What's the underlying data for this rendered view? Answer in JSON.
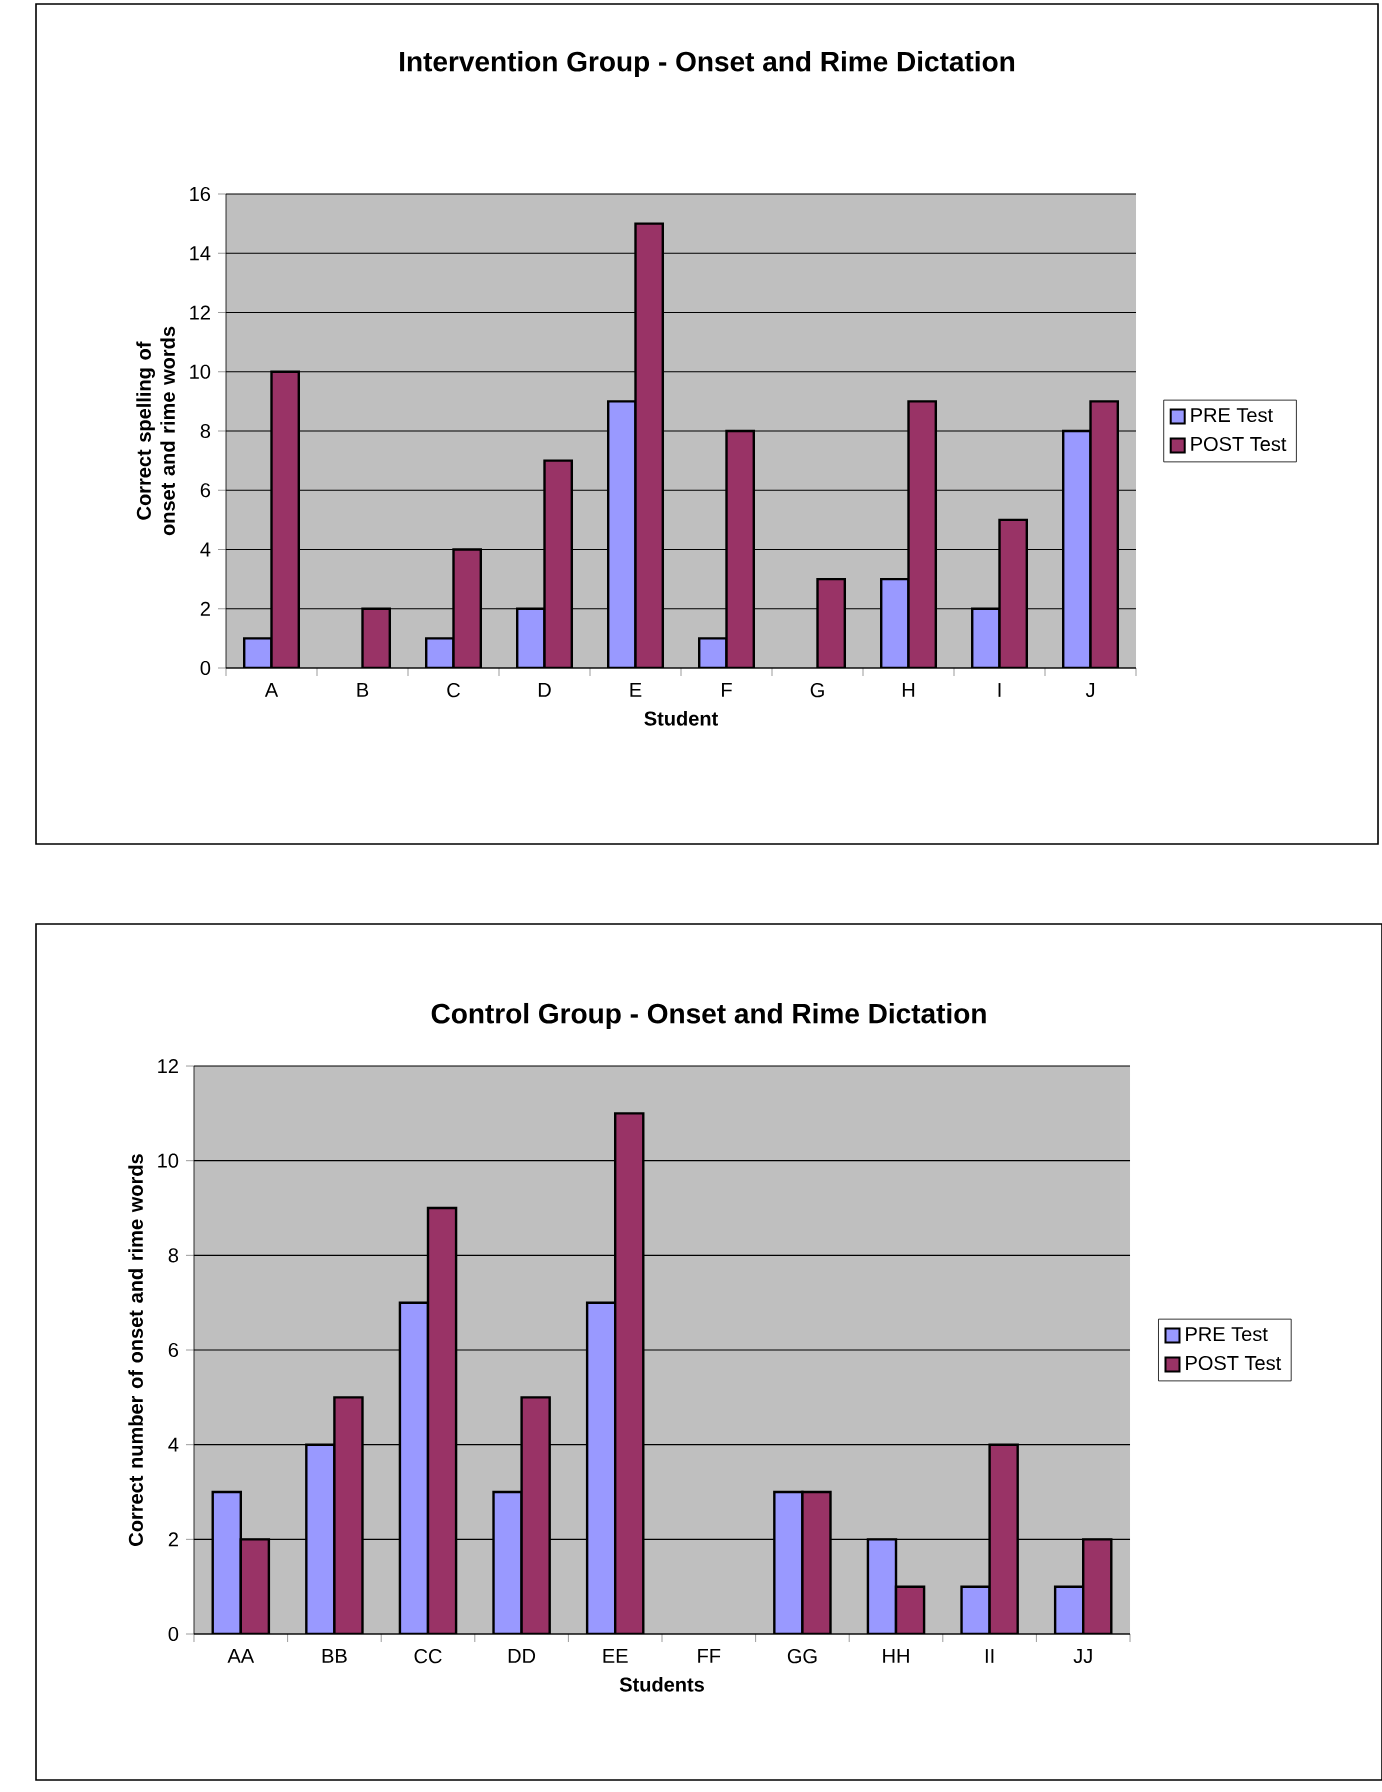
{
  "chart_data": [
    {
      "type": "bar",
      "title": "Intervention Group - Onset and Rime Dictation",
      "xlabel": "Student",
      "ylabel": "Correct spelling of onset and rime words",
      "categories": [
        "A",
        "B",
        "C",
        "D",
        "E",
        "F",
        "G",
        "H",
        "I",
        "J"
      ],
      "series": [
        {
          "name": "PRE Test",
          "color": "#9999ff",
          "values": [
            1,
            0,
            1,
            2,
            9,
            1,
            0,
            3,
            2,
            8
          ]
        },
        {
          "name": "POST Test",
          "color": "#993366",
          "values": [
            10,
            2,
            4,
            7,
            15,
            8,
            3,
            9,
            5,
            9
          ]
        }
      ],
      "ylim": [
        0,
        16
      ],
      "yticks": [
        0,
        2,
        4,
        6,
        8,
        10,
        12,
        14,
        16
      ],
      "grid": "y",
      "legend": "right"
    },
    {
      "type": "bar",
      "title": "Control Group - Onset and Rime Dictation",
      "xlabel": "Students",
      "ylabel": "Correct number of onset and rime words",
      "categories": [
        "AA",
        "BB",
        "CC",
        "DD",
        "EE",
        "FF",
        "GG",
        "HH",
        "II",
        "JJ"
      ],
      "series": [
        {
          "name": "PRE Test",
          "color": "#9999ff",
          "values": [
            3,
            4,
            7,
            3,
            7,
            0,
            3,
            2,
            1,
            1
          ]
        },
        {
          "name": "POST Test",
          "color": "#993366",
          "values": [
            2,
            5,
            9,
            5,
            11,
            0,
            3,
            1,
            4,
            2
          ]
        }
      ],
      "ylim": [
        0,
        12
      ],
      "yticks": [
        0,
        2,
        4,
        6,
        8,
        10,
        12
      ],
      "grid": "y",
      "legend": "right"
    }
  ]
}
